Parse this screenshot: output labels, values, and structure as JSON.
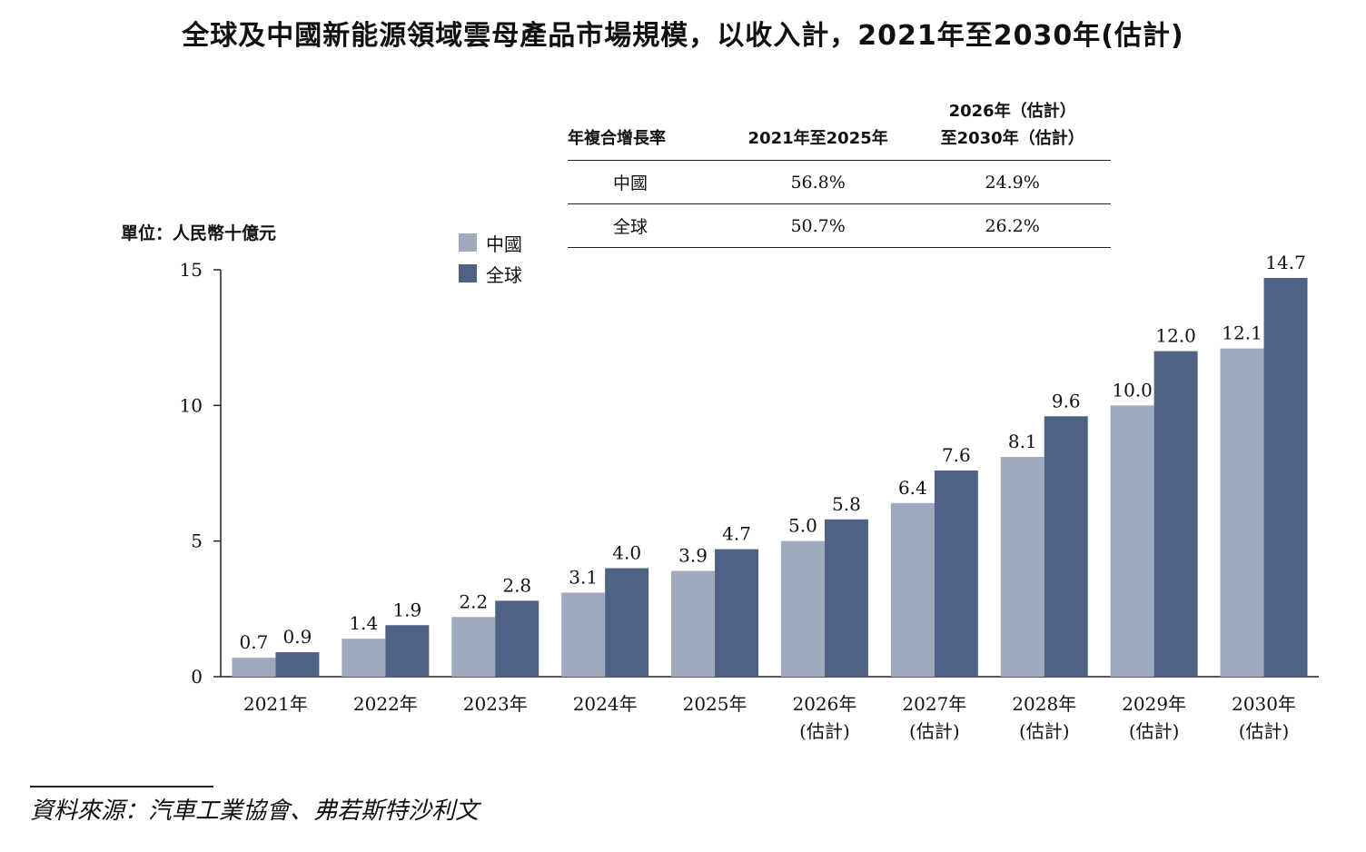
{
  "chart_data": {
    "type": "bar",
    "title": "全球及中國新能源領域雲母產品市場規模，以收入計，2021年至2030年(估計)",
    "ylabel": "單位：人民幣十億元",
    "ylim": [
      0,
      15
    ],
    "yticks": [
      "0",
      "5",
      "10",
      "15"
    ],
    "grid": false,
    "legend_position": "top-left",
    "categories": [
      {
        "line1": "2021年",
        "line2": ""
      },
      {
        "line1": "2022年",
        "line2": ""
      },
      {
        "line1": "2023年",
        "line2": ""
      },
      {
        "line1": "2024年",
        "line2": ""
      },
      {
        "line1": "2025年",
        "line2": ""
      },
      {
        "line1": "2026年",
        "line2": "(估計)"
      },
      {
        "line1": "2027年",
        "line2": "(估計)"
      },
      {
        "line1": "2028年",
        "line2": "(估計)"
      },
      {
        "line1": "2029年",
        "line2": "(估計)"
      },
      {
        "line1": "2030年",
        "line2": "(估計)"
      }
    ],
    "series": [
      {
        "name": "中國",
        "color": "#9eaabe",
        "values": [
          0.7,
          1.4,
          2.2,
          3.1,
          3.9,
          5.0,
          6.4,
          8.1,
          10.0,
          12.1
        ],
        "labels": [
          "0.7",
          "1.4",
          "2.2",
          "3.1",
          "3.9",
          "5.0",
          "6.4",
          "8.1",
          "10.0",
          "12.1"
        ]
      },
      {
        "name": "全球",
        "color": "#4f6286",
        "values": [
          0.9,
          1.9,
          2.8,
          4.0,
          4.7,
          5.8,
          7.6,
          9.6,
          12.0,
          14.7
        ],
        "labels": [
          "0.9",
          "1.9",
          "2.8",
          "4.0",
          "4.7",
          "5.8",
          "7.6",
          "9.6",
          "12.0",
          "14.7"
        ]
      }
    ]
  },
  "cagr_table": {
    "headers": [
      "年複合增長率",
      "2021年至2025年",
      "2026年（估計）",
      "至2030年（估計）"
    ],
    "rows": [
      {
        "label": "中國",
        "v1": "56.8%",
        "v2": "24.9%"
      },
      {
        "label": "全球",
        "v1": "50.7%",
        "v2": "26.2%"
      }
    ]
  },
  "source": "資料來源：汽車工業協會、弗若斯特沙利文"
}
